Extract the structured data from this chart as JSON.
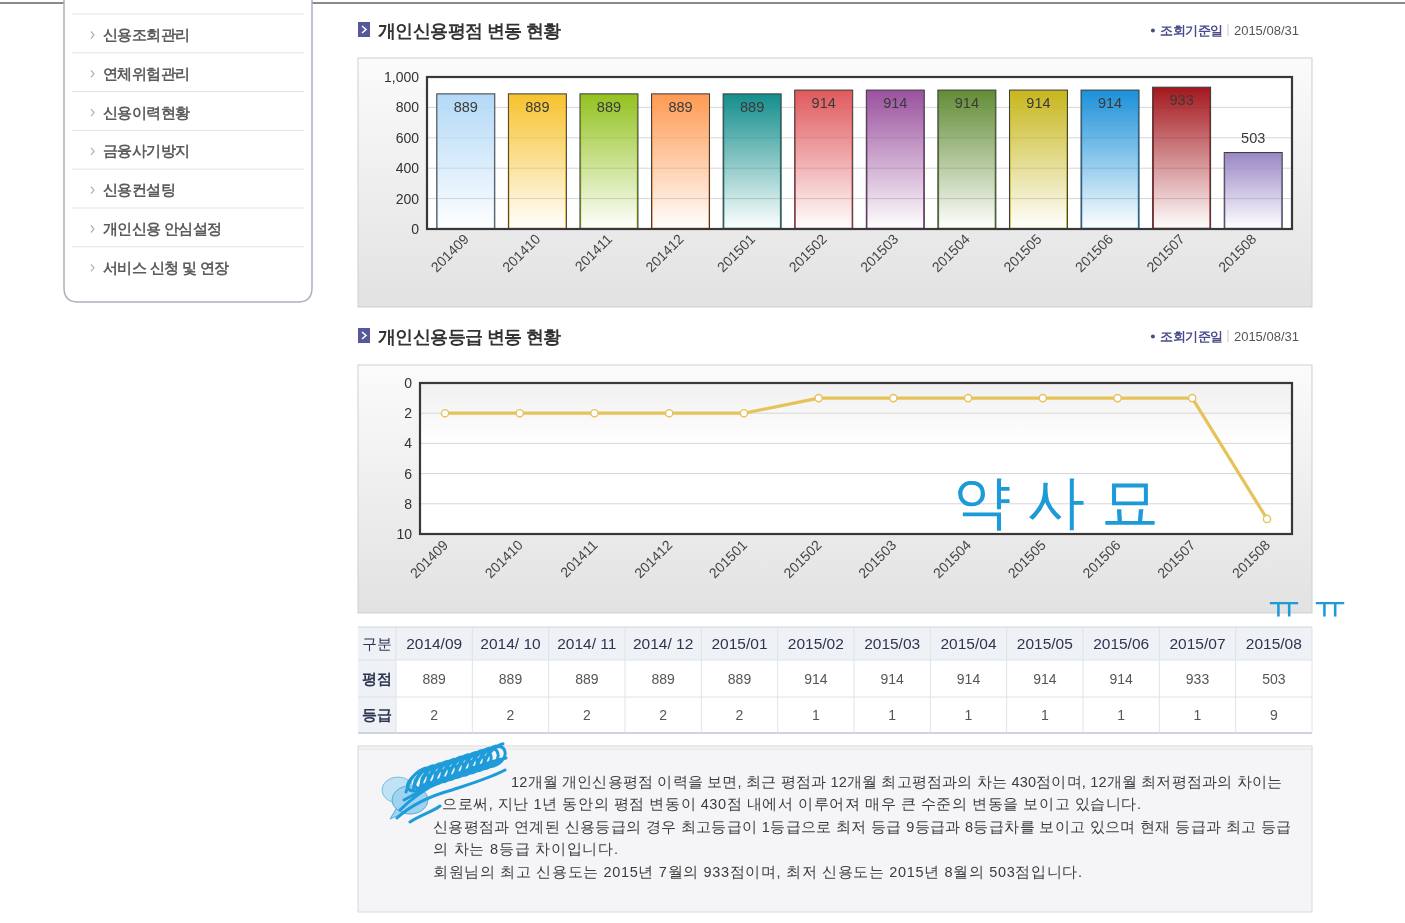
{
  "chart_data": [
    {
      "type": "other",
      "annotations": [
        "신용조회관리",
        "연체위험관리",
        "신용이력현황",
        "금융사기방지",
        "신용컨설팅",
        "개인신용 안심설정",
        "서비스 신청 및 연장"
      ]
    },
    {
      "type": "bar",
      "title": "개인신용평점 변동 현황",
      "annotations": [
        "조회기준일",
        "2015/08/31"
      ],
      "categories": [
        "201409",
        "201410",
        "201411",
        "201412",
        "201501",
        "201502",
        "201503",
        "201504",
        "201505",
        "201506",
        "201507",
        "201508"
      ],
      "values": [
        889,
        889,
        889,
        889,
        889,
        914,
        914,
        914,
        914,
        914,
        933,
        503
      ],
      "colors": [
        "#b3d9f7",
        "#f7c22c",
        "#93c21f",
        "#ff9a52",
        "#138e8c",
        "#e0595c",
        "#9a519e",
        "#628c35",
        "#c7b61c",
        "#1b90d8",
        "#a3171d",
        "#9a87c6"
      ],
      "ylim": [
        0,
        1000
      ],
      "yticks": [
        0,
        200,
        400,
        600,
        800,
        {
          "value": 1000,
          "label": "1,000"
        }
      ],
      "grid": "y",
      "data_labels": true
    },
    {
      "type": "line",
      "title": "개인신용등급 변동 현황",
      "annotations": [
        "조회기준일",
        "2015/08/31",
        "약사묘",
        "ㅠㅠ"
      ],
      "categories": [
        "201409",
        "201410",
        "201411",
        "201412",
        "201501",
        "201502",
        "201503",
        "201504",
        "201505",
        "201506",
        "201507",
        "201508"
      ],
      "series": [
        {
          "color": "#e6c35a",
          "values": [
            2,
            2,
            2,
            2,
            2,
            1,
            1,
            1,
            1,
            1,
            1,
            9
          ]
        }
      ],
      "ylim": [
        10,
        0
      ],
      "yticks": [
        0,
        2,
        4,
        6,
        8,
        10
      ],
      "grid": "y",
      "marker": "circle",
      "line_style": "solid"
    },
    {
      "type": "other",
      "legend_title": "구분",
      "categories": [
        "2014/09",
        "2014/ 10",
        "2014/ 11",
        "2014/ 12",
        "2015/01",
        "2015/02",
        "2015/03",
        "2015/04",
        "2015/05",
        "2015/06",
        "2015/07",
        "2015/08"
      ],
      "series": [
        {
          "name": "평점",
          "values": [
            889,
            889,
            889,
            889,
            889,
            914,
            914,
            914,
            914,
            914,
            933,
            503
          ]
        },
        {
          "name": "등급",
          "values": [
            2,
            2,
            2,
            2,
            2,
            1,
            1,
            1,
            1,
            1,
            1,
            9
          ]
        }
      ],
      "data_labels": true
    },
    {
      "type": "other",
      "annotations": [
        "12개월 개인신용평점 이력을 보면, 최근 평점과 12개월 최고평점과의 차는 430점이며, 12개월 최저평점과의 차이는",
        "으로써, 지난 1년 동안의 평점 변동이 430점 내에서 이루어져 매우 큰 수준의 변동을 보이고 있습니다.",
        "신용평점과 연계된 신용등급의 경우 최고등급이 1등급으로 최저 등급 9등급과 8등급차를 보이고 있으며 현재 등급과 최고 등급",
        "의 차는 8등급 차이입니다.",
        "회원님의 최고 신용도는 2015년  7월의 933점이며, 최저 신용도는 2015년 8월의 503점입니다."
      ]
    }
  ]
}
